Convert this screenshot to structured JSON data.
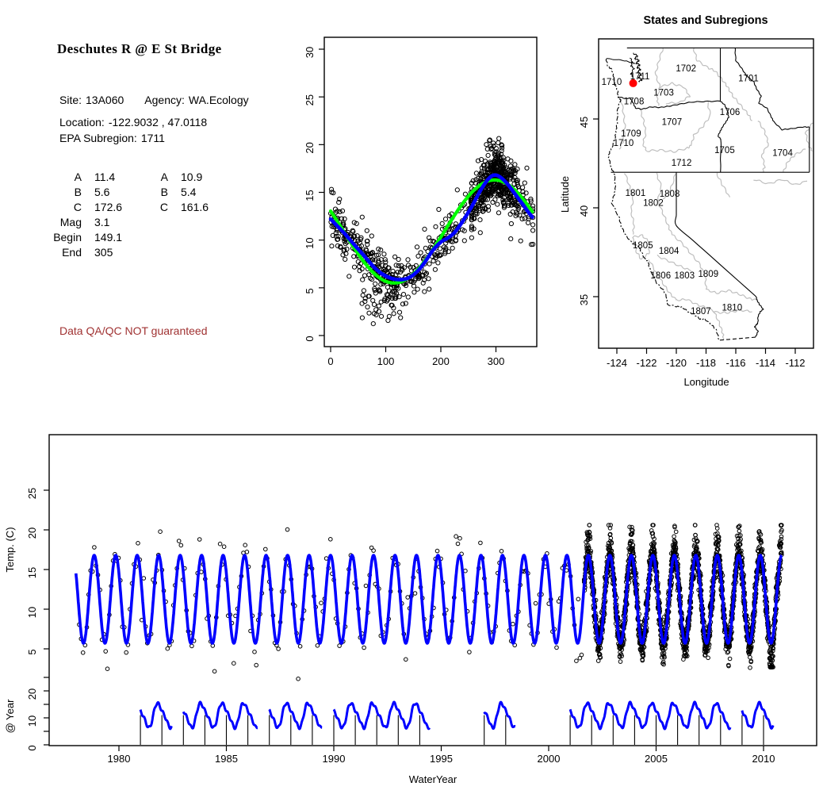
{
  "site_panel": {
    "title": "Deschutes R @ E St Bridge",
    "site_label": "Site:",
    "site_value": "13A060",
    "agency_label": "Agency:",
    "agency_value": "WA.Ecology",
    "location_label": "Location:",
    "location_value": "-122.9032 , 47.0118",
    "epa_label": "EPA Subregion:",
    "epa_value": "1711",
    "fit_table": {
      "left": [
        [
          "A",
          "11.4"
        ],
        [
          "B",
          "5.6"
        ],
        [
          "C",
          "172.6"
        ],
        [
          "Mag",
          "3.1"
        ],
        [
          "Begin",
          "149.1"
        ],
        [
          "End",
          "305"
        ]
      ],
      "right": [
        [
          "A",
          "10.9"
        ],
        [
          "B",
          "5.4"
        ],
        [
          "C",
          "161.6"
        ]
      ]
    },
    "qa_warning": "Data QA/QC NOT guaranteed",
    "qa_color": "#A03232"
  },
  "chart_data": [
    {
      "type": "scatter",
      "name": "seasonal-temperature-fit",
      "title": "",
      "xlabel": "",
      "ylabel": "",
      "xlim": [
        -11,
        374
      ],
      "ylim": [
        -1.4,
        31.4
      ],
      "xticks": [
        0,
        100,
        200,
        300
      ],
      "yticks": [
        0,
        5,
        10,
        15,
        20,
        25,
        30
      ],
      "series": [
        {
          "name": "daily-observations",
          "kind": "scatter",
          "color": "#000000",
          "generator": {
            "seed": 7,
            "clusters": [
              {
                "name": "left",
                "count": 300,
                "x": [
                  0,
                  155
                ],
                "noise": 1.25
              },
              {
                "name": "mid",
                "count": 130,
                "x": [
                  155,
                  255
                ],
                "noise": 1.15
              },
              {
                "name": "right",
                "count": 520,
                "xcenter": 302,
                "xsd": 30,
                "xclip": [
                  256,
                  367
                ],
                "noise": 1.3
              },
              {
                "name": "low-outliers",
                "count": 28,
                "x": [
                  55,
                  118
                ],
                "ylow": 1.2,
                "yhigh": 4.5
              },
              {
                "name": "high-outliers",
                "count": 14,
                "x": [
                  285,
                  312
                ],
                "ylow": 18.5,
                "yhigh": 20.6
              }
            ]
          }
        },
        {
          "name": "seasonal-sine-fit",
          "kind": "line",
          "color": "#00FF00",
          "width": 4.2,
          "model": {
            "mean": 10.9,
            "amplitude": 5.4,
            "min_day": 115,
            "period": 365
          }
        },
        {
          "name": "smooth-fit",
          "kind": "line",
          "color": "#0000FF",
          "width": 4.6,
          "points": [
            [
              0,
              12.2
            ],
            [
              10,
              11.6
            ],
            [
              25,
              10.7
            ],
            [
              40,
              9.7
            ],
            [
              60,
              8.4
            ],
            [
              80,
              7.1
            ],
            [
              95,
              6.4
            ],
            [
              110,
              6.0
            ],
            [
              125,
              5.85
            ],
            [
              140,
              6.0
            ],
            [
              155,
              6.6
            ],
            [
              170,
              7.6
            ],
            [
              185,
              8.9
            ],
            [
              200,
              9.8
            ],
            [
              212,
              10.2
            ],
            [
              225,
              10.8
            ],
            [
              240,
              12.0
            ],
            [
              255,
              13.4
            ],
            [
              270,
              15.0
            ],
            [
              282,
              16.1
            ],
            [
              292,
              16.7
            ],
            [
              300,
              16.8
            ],
            [
              310,
              16.5
            ],
            [
              322,
              15.8
            ],
            [
              335,
              14.8
            ],
            [
              348,
              13.8
            ],
            [
              358,
              13.0
            ],
            [
              366,
              12.4
            ]
          ]
        }
      ]
    },
    {
      "type": "map",
      "name": "states-and-subregions-map",
      "title": "States and Subregions",
      "xlabel": "Longitude",
      "ylabel": "Latitude",
      "xticks": [
        -124,
        -122,
        -120,
        -118,
        -116,
        -114,
        -112
      ],
      "yticks": [
        35,
        40,
        45
      ],
      "lon_range": [
        -125.2,
        -110.8
      ],
      "lat_range": [
        32.1,
        49.5
      ],
      "state_border_color": "#000000",
      "subregion_border_color": "#BEBEBE",
      "site_marker": {
        "lon": -122.9032,
        "lat": 47.0118,
        "color": "#FF0000"
      },
      "regions": [
        {
          "code": "1711",
          "lon": -122.45,
          "lat": 47.42
        },
        {
          "code": "1702",
          "lon": -119.35,
          "lat": 47.85
        },
        {
          "code": "1701",
          "lon": -115.15,
          "lat": 47.3
        },
        {
          "code": "1710",
          "lon": -124.35,
          "lat": 47.1
        },
        {
          "code": "1703",
          "lon": -120.85,
          "lat": 46.5
        },
        {
          "code": "1708",
          "lon": -122.85,
          "lat": 46.0
        },
        {
          "code": "1706",
          "lon": -116.4,
          "lat": 45.4
        },
        {
          "code": "1707",
          "lon": -120.3,
          "lat": 44.85
        },
        {
          "code": "1709",
          "lon": -123.05,
          "lat": 44.2
        },
        {
          "code": "1710",
          "lon": -123.55,
          "lat": 43.65
        },
        {
          "code": "1705",
          "lon": -116.75,
          "lat": 43.25
        },
        {
          "code": "1704",
          "lon": -112.85,
          "lat": 43.1
        },
        {
          "code": "1712",
          "lon": -119.65,
          "lat": 42.55
        },
        {
          "code": "1801",
          "lon": -122.75,
          "lat": 40.85
        },
        {
          "code": "1808",
          "lon": -120.45,
          "lat": 40.8
        },
        {
          "code": "1802",
          "lon": -121.55,
          "lat": 40.3
        },
        {
          "code": "1805",
          "lon": -122.25,
          "lat": 37.9
        },
        {
          "code": "1804",
          "lon": -120.5,
          "lat": 37.6
        },
        {
          "code": "1806",
          "lon": -121.05,
          "lat": 36.2
        },
        {
          "code": "1803",
          "lon": -119.45,
          "lat": 36.2
        },
        {
          "code": "1809",
          "lon": -117.85,
          "lat": 36.3
        },
        {
          "code": "1807",
          "lon": -118.35,
          "lat": 34.2
        },
        {
          "code": "1810",
          "lon": -116.25,
          "lat": 34.4
        }
      ]
    },
    {
      "type": "line+scatter",
      "name": "water-temperature-timeseries",
      "xlabel": "WaterYear",
      "ylabel": "Temp. (C)",
      "ylabel2": "@ Year",
      "xticks": [
        1980,
        1985,
        1990,
        1995,
        2000,
        2005,
        2010
      ],
      "yticks": [
        5,
        10,
        15,
        20,
        25
      ],
      "y2ticks_labeled": [
        0,
        10,
        20
      ],
      "y2ticks_all": [
        0,
        5,
        10,
        15,
        20,
        25
      ],
      "line_color": "#0000FF",
      "point_color": "#000000",
      "water_model": {
        "mean": 11.25,
        "amplitude": 5.55,
        "phase": 0.6,
        "start": 1978.0,
        "end": 2010.85
      },
      "observations": {
        "seed": 11,
        "sparse": {
          "start": 1978.15,
          "end": 2001.55,
          "step": 0.078,
          "noise": 1.3
        },
        "dense": {
          "start": 2001.65,
          "end": 2010.85,
          "step": 0.004,
          "noise": 0.9
        },
        "cold_event": {
          "start": 2010.28,
          "end": 2010.45,
          "min_temp": 2.7
        }
      },
      "air_segments": [
        {
          "ticks": [
            1981,
            1982
          ]
        },
        {
          "ticks": [
            1983,
            1984,
            1985,
            1986
          ]
        },
        {
          "ticks": [
            1987,
            1988,
            1989
          ]
        },
        {
          "ticks": [
            1990,
            1991,
            1992,
            1993,
            1994
          ]
        },
        {
          "ticks": [
            1997,
            1998
          ]
        },
        {
          "ticks": [
            2001,
            2002,
            2003,
            2004,
            2005,
            2006,
            2007,
            2008
          ]
        },
        {
          "ticks": [
            2009,
            2010
          ]
        }
      ],
      "air_model": {
        "mean": 11.0,
        "amplitude": 4.2,
        "phase": 0.6
      }
    }
  ]
}
